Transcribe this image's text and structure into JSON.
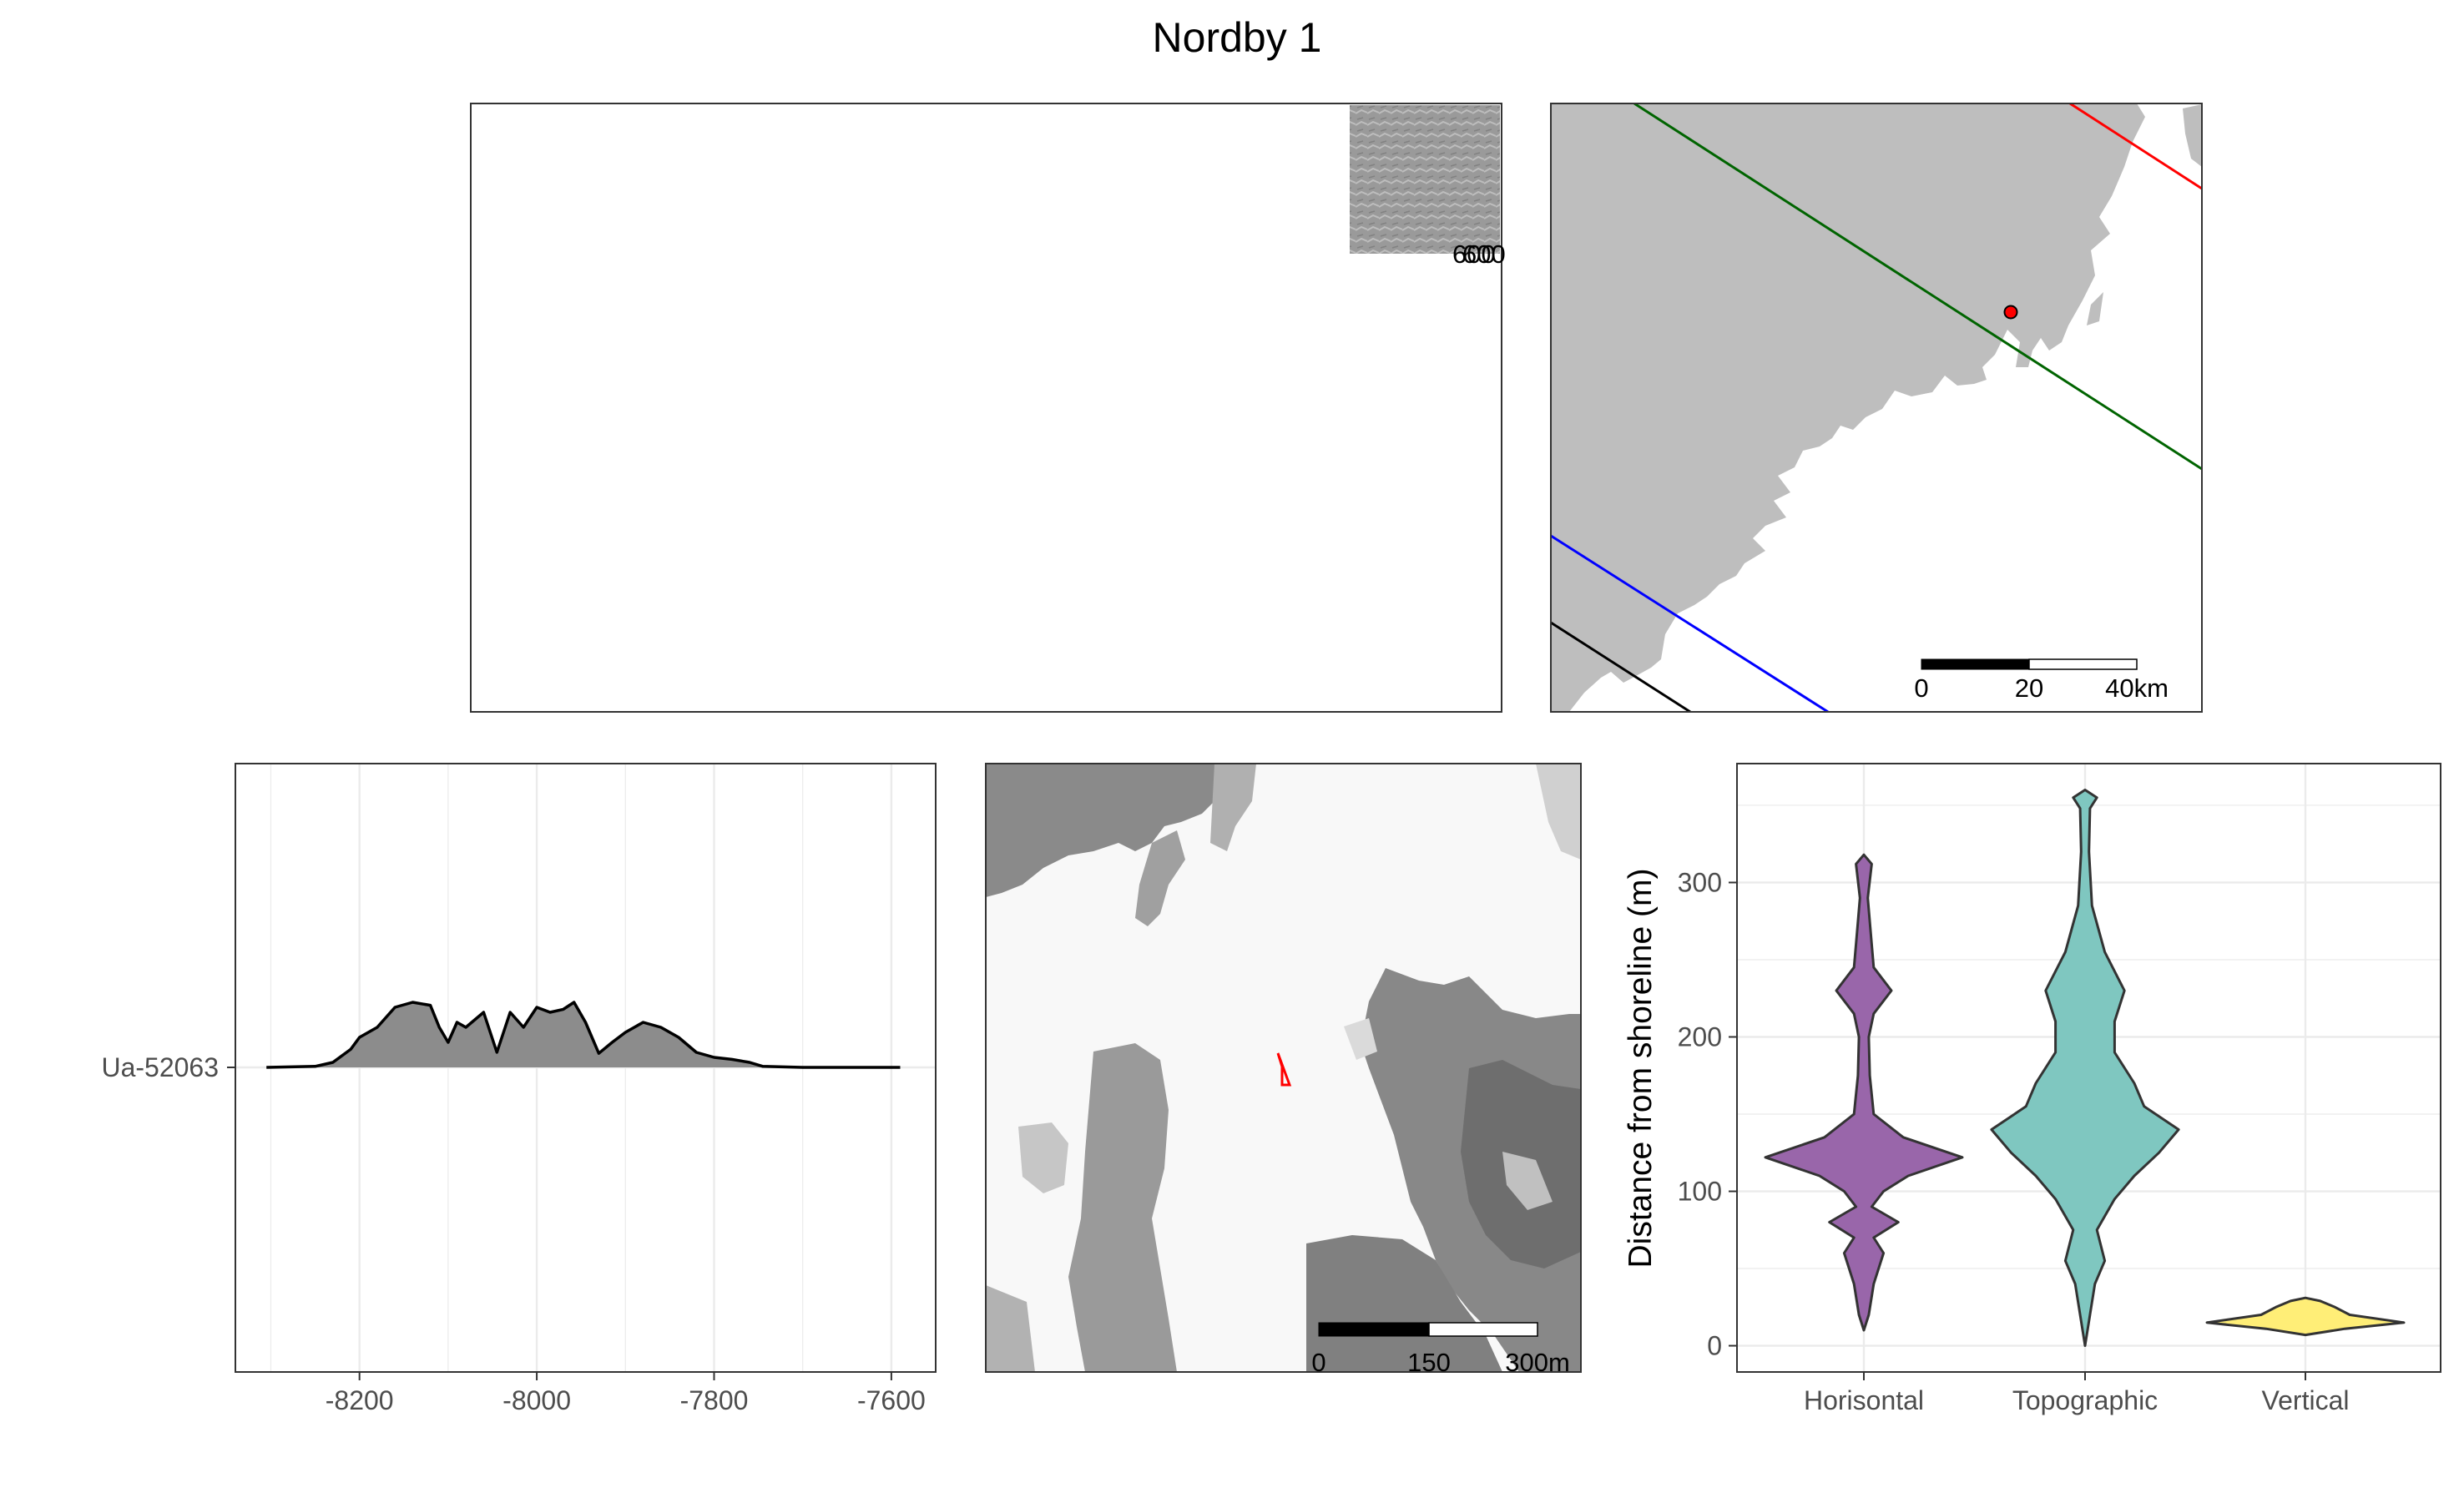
{
  "figure": {
    "title": "Nordby 1"
  },
  "inset_map": {
    "labels_text": "600"
  },
  "region_map": {
    "scale_labels": [
      "0",
      "20",
      "40km"
    ],
    "site_point_color": "#ff0000",
    "line_colors": [
      "#ff0000",
      "#006400",
      "#0000ff",
      "#000000"
    ]
  },
  "local_map": {
    "scale_labels": [
      "0",
      "150",
      "300m"
    ],
    "site_polygon_color": "#ff0000"
  },
  "chart_data": [
    {
      "type": "area",
      "name": "radiocarbon-density",
      "y_category": "Ua-52063",
      "x_ticks": [
        -8200,
        -8000,
        -7800,
        -7600
      ],
      "xlim": [
        -8340,
        -7550
      ],
      "grid": true,
      "series": [
        {
          "x": [
            -8305,
            -8250,
            -8230,
            -8210,
            -8200,
            -8180,
            -8160,
            -8140,
            -8120,
            -8110,
            -8100,
            -8090,
            -8080,
            -8060,
            -8045,
            -8030,
            -8015,
            -8000,
            -7985,
            -7970,
            -7958,
            -7945,
            -7930,
            -7915,
            -7900,
            -7880,
            -7860,
            -7840,
            -7820,
            -7800,
            -7780,
            -7760,
            -7745,
            -7700,
            -7650,
            -7590
          ],
          "y": [
            0.0,
            0.01,
            0.05,
            0.18,
            0.3,
            0.4,
            0.6,
            0.65,
            0.62,
            0.4,
            0.25,
            0.45,
            0.4,
            0.55,
            0.15,
            0.55,
            0.4,
            0.6,
            0.55,
            0.58,
            0.65,
            0.45,
            0.14,
            0.25,
            0.35,
            0.45,
            0.4,
            0.3,
            0.15,
            0.1,
            0.08,
            0.05,
            0.01,
            0.0,
            0.0,
            0.0
          ]
        }
      ]
    },
    {
      "type": "violin",
      "name": "shoreline-distance",
      "ylabel": "Distance from shoreline (m)",
      "categories": [
        "Horisontal",
        "Topographic",
        "Vertical"
      ],
      "y_ticks": [
        0,
        100,
        200,
        300
      ],
      "ylim": [
        -17,
        377
      ],
      "grid": true,
      "colors": [
        "#9966aa",
        "#7fc7c0",
        "#ffee77"
      ],
      "series": [
        {
          "name": "Horisontal",
          "y_range": [
            10,
            318
          ],
          "profile": [
            [
              10,
              0.0
            ],
            [
              20,
              0.05
            ],
            [
              40,
              0.1
            ],
            [
              60,
              0.2
            ],
            [
              70,
              0.1
            ],
            [
              80,
              0.35
            ],
            [
              90,
              0.08
            ],
            [
              100,
              0.2
            ],
            [
              110,
              0.45
            ],
            [
              122,
              1.0
            ],
            [
              135,
              0.4
            ],
            [
              150,
              0.1
            ],
            [
              175,
              0.06
            ],
            [
              200,
              0.05
            ],
            [
              215,
              0.1
            ],
            [
              230,
              0.28
            ],
            [
              245,
              0.1
            ],
            [
              260,
              0.08
            ],
            [
              290,
              0.04
            ],
            [
              312,
              0.08
            ],
            [
              318,
              0.0
            ]
          ]
        },
        {
          "name": "Topographic",
          "y_range": [
            0,
            360
          ],
          "profile": [
            [
              0,
              0.0
            ],
            [
              20,
              0.05
            ],
            [
              40,
              0.1
            ],
            [
              55,
              0.2
            ],
            [
              75,
              0.12
            ],
            [
              95,
              0.3
            ],
            [
              110,
              0.5
            ],
            [
              125,
              0.75
            ],
            [
              140,
              0.95
            ],
            [
              155,
              0.6
            ],
            [
              170,
              0.5
            ],
            [
              190,
              0.3
            ],
            [
              210,
              0.3
            ],
            [
              230,
              0.4
            ],
            [
              255,
              0.2
            ],
            [
              285,
              0.07
            ],
            [
              320,
              0.04
            ],
            [
              348,
              0.05
            ],
            [
              355,
              0.12
            ],
            [
              360,
              0.0
            ]
          ]
        },
        {
          "name": "Vertical",
          "y_range": [
            7,
            31
          ],
          "profile": [
            [
              7,
              0.0
            ],
            [
              11,
              0.4
            ],
            [
              15,
              1.0
            ],
            [
              20,
              0.45
            ],
            [
              25,
              0.3
            ],
            [
              29,
              0.15
            ],
            [
              31,
              0.0
            ]
          ]
        }
      ]
    }
  ]
}
